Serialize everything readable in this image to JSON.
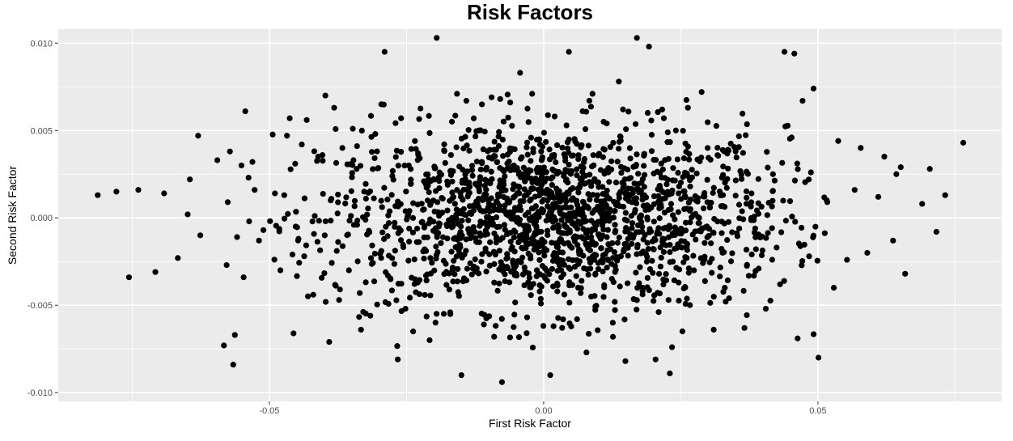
{
  "chart_data": {
    "type": "scatter",
    "title": "Risk Factors",
    "xlabel": "First Risk Factor",
    "ylabel": "Second Risk Factor",
    "xlim": [
      -0.0885,
      0.0835
    ],
    "ylim": [
      -0.0105,
      0.0108
    ],
    "x_ticks": [
      {
        "value": -0.05,
        "label": "-0.05"
      },
      {
        "value": 0.0,
        "label": "0.00"
      },
      {
        "value": 0.05,
        "label": "0.05"
      }
    ],
    "y_ticks": [
      {
        "value": -0.01,
        "label": "-0.010"
      },
      {
        "value": -0.005,
        "label": "-0.005"
      },
      {
        "value": 0.0,
        "label": "0.000"
      },
      {
        "value": 0.005,
        "label": "0.005"
      },
      {
        "value": 0.01,
        "label": "0.010"
      }
    ],
    "grid": true,
    "panel_color": "#ebebeb",
    "point_color": "#000000",
    "points": [
      [
        -0.0813,
        0.0013
      ],
      [
        -0.0779,
        0.0015
      ],
      [
        -0.0756,
        -0.0034
      ],
      [
        -0.0739,
        0.0016
      ],
      [
        -0.0708,
        -0.0031
      ],
      [
        -0.0692,
        0.0014
      ],
      [
        -0.0667,
        -0.0023
      ],
      [
        -0.0649,
        0.0002
      ],
      [
        -0.0645,
        0.0022
      ],
      [
        -0.063,
        0.0047
      ],
      [
        -0.0626,
        -0.001
      ],
      [
        -0.0595,
        0.0033
      ],
      [
        -0.0583,
        -0.0073
      ],
      [
        -0.0578,
        -0.0027
      ],
      [
        -0.0576,
        0.0009
      ],
      [
        -0.0572,
        0.0038
      ],
      [
        -0.0566,
        -0.0084
      ],
      [
        -0.0563,
        -0.0067
      ],
      [
        -0.0559,
        -0.0011
      ],
      [
        -0.0551,
        0.003
      ],
      [
        -0.0547,
        -0.0034
      ],
      [
        -0.0544,
        0.0061
      ],
      [
        -0.0538,
        0.0023
      ],
      [
        -0.0537,
        -0.0002
      ],
      [
        -0.0531,
        0.0032
      ],
      [
        -0.0527,
        0.0016
      ],
      [
        -0.0519,
        -0.0013
      ],
      [
        -0.0511,
        -0.0007
      ],
      [
        -0.049,
        0.0014
      ],
      [
        -0.048,
        -0.003
      ],
      [
        -0.0473,
        0.0013
      ],
      [
        -0.0468,
        0.0047
      ],
      [
        -0.0463,
        0.0057
      ],
      [
        -0.0458,
        -0.0021
      ],
      [
        -0.0453,
        0.0031
      ],
      [
        -0.0447,
        -0.0012
      ],
      [
        -0.0441,
        0.0042
      ],
      [
        -0.0432,
        0.0056
      ],
      [
        -0.042,
        -0.0044
      ],
      [
        -0.0411,
        0.0035
      ],
      [
        -0.0398,
        0.007
      ],
      [
        -0.0391,
        -0.0071
      ],
      [
        -0.0382,
        0.0063
      ],
      [
        -0.0373,
        -0.0047
      ],
      [
        -0.0367,
        0.004
      ],
      [
        -0.0355,
        -0.003
      ],
      [
        -0.0348,
        0.0051
      ],
      [
        -0.0341,
        0.0028
      ],
      [
        -0.0333,
        -0.0064
      ],
      [
        -0.0324,
        0.0011
      ],
      [
        -0.0316,
        -0.0056
      ],
      [
        -0.0307,
        0.0048
      ],
      [
        -0.0296,
        0.0065
      ],
      [
        -0.029,
        0.0095
      ],
      [
        -0.0284,
        -0.0033
      ],
      [
        -0.0276,
        0.0024
      ],
      [
        -0.0266,
        -0.0081
      ],
      [
        -0.026,
        0.0057
      ],
      [
        -0.0252,
        -0.0052
      ],
      [
        -0.0246,
        0.003
      ],
      [
        -0.0238,
        -0.0065
      ],
      [
        -0.0229,
        0.0037
      ],
      [
        -0.0217,
        -0.0018
      ],
      [
        -0.0208,
        -0.007
      ],
      [
        -0.0195,
        0.0103
      ],
      [
        -0.0184,
        0.0011
      ],
      [
        -0.0172,
        -0.0041
      ],
      [
        -0.0158,
        0.0071
      ],
      [
        -0.015,
        -0.009
      ],
      [
        -0.0141,
        0.0067
      ],
      [
        -0.0129,
        -0.0029
      ],
      [
        -0.0118,
        0.005
      ],
      [
        -0.0109,
        -0.0061
      ],
      [
        -0.0095,
        0.0069
      ],
      [
        -0.0086,
        -0.0011
      ],
      [
        -0.0076,
        -0.0094
      ],
      [
        -0.0061,
        0.0066
      ],
      [
        -0.005,
        -0.0032
      ],
      [
        -0.0043,
        0.0083
      ],
      [
        -0.0031,
        -0.0066
      ],
      [
        -0.0021,
        0.0071
      ],
      [
        -0.0005,
        -0.0049
      ],
      [
        0.0012,
        -0.009
      ],
      [
        0.002,
        0.0058
      ],
      [
        0.0032,
        -0.0034
      ],
      [
        0.0046,
        0.0095
      ],
      [
        0.0057,
        -0.0028
      ],
      [
        0.0071,
        0.0061
      ],
      [
        0.0078,
        -0.0077
      ],
      [
        0.0089,
        0.0071
      ],
      [
        0.0104,
        -0.0012
      ],
      [
        0.0115,
        0.0054
      ],
      [
        0.0126,
        -0.006
      ],
      [
        0.0137,
        0.0078
      ],
      [
        0.0149,
        -0.0082
      ],
      [
        0.0158,
        0.0034
      ],
      [
        0.017,
        0.0103
      ],
      [
        0.0181,
        -0.004
      ],
      [
        0.0192,
        0.0098
      ],
      [
        0.0204,
        -0.0081
      ],
      [
        0.0216,
        0.0062
      ],
      [
        0.023,
        -0.0089
      ],
      [
        0.0234,
        -0.0074
      ],
      [
        0.0241,
        0.005
      ],
      [
        0.0252,
        -0.0017
      ],
      [
        0.0263,
        0.0063
      ],
      [
        0.0274,
        -0.003
      ],
      [
        0.0288,
        0.0072
      ],
      [
        0.0299,
        0.004
      ],
      [
        0.031,
        -0.0064
      ],
      [
        0.0325,
        0.0023
      ],
      [
        0.0338,
        -0.0046
      ],
      [
        0.035,
        0.0038
      ],
      [
        0.0366,
        -0.0063
      ],
      [
        0.0379,
        0.0014
      ],
      [
        0.0392,
        -0.0029
      ],
      [
        0.0405,
        -0.0052
      ],
      [
        0.0418,
        0.0025
      ],
      [
        0.0431,
        -0.0038
      ],
      [
        0.0439,
        0.0095
      ],
      [
        0.0452,
        0.0046
      ],
      [
        0.0457,
        0.0094
      ],
      [
        0.0463,
        -0.0069
      ],
      [
        0.0472,
        0.0067
      ],
      [
        0.0484,
        -0.0022
      ],
      [
        0.0492,
        0.0074
      ],
      [
        0.0501,
        -0.008
      ],
      [
        0.0517,
        0.0009
      ],
      [
        0.0529,
        -0.004
      ],
      [
        0.0537,
        0.0044
      ],
      [
        0.0553,
        -0.0024
      ],
      [
        0.0567,
        0.0016
      ],
      [
        0.0578,
        0.004
      ],
      [
        0.059,
        -0.002
      ],
      [
        0.061,
        0.0012
      ],
      [
        0.0621,
        0.0035
      ],
      [
        0.0637,
        -0.0013
      ],
      [
        0.0643,
        0.0025
      ],
      [
        0.0651,
        0.0029
      ],
      [
        0.0659,
        -0.0032
      ],
      [
        0.069,
        0.0008
      ],
      [
        0.0704,
        0.0028
      ],
      [
        0.0716,
        -0.0008
      ],
      [
        0.0732,
        0.0013
      ],
      [
        0.0765,
        0.0043
      ]
    ]
  }
}
